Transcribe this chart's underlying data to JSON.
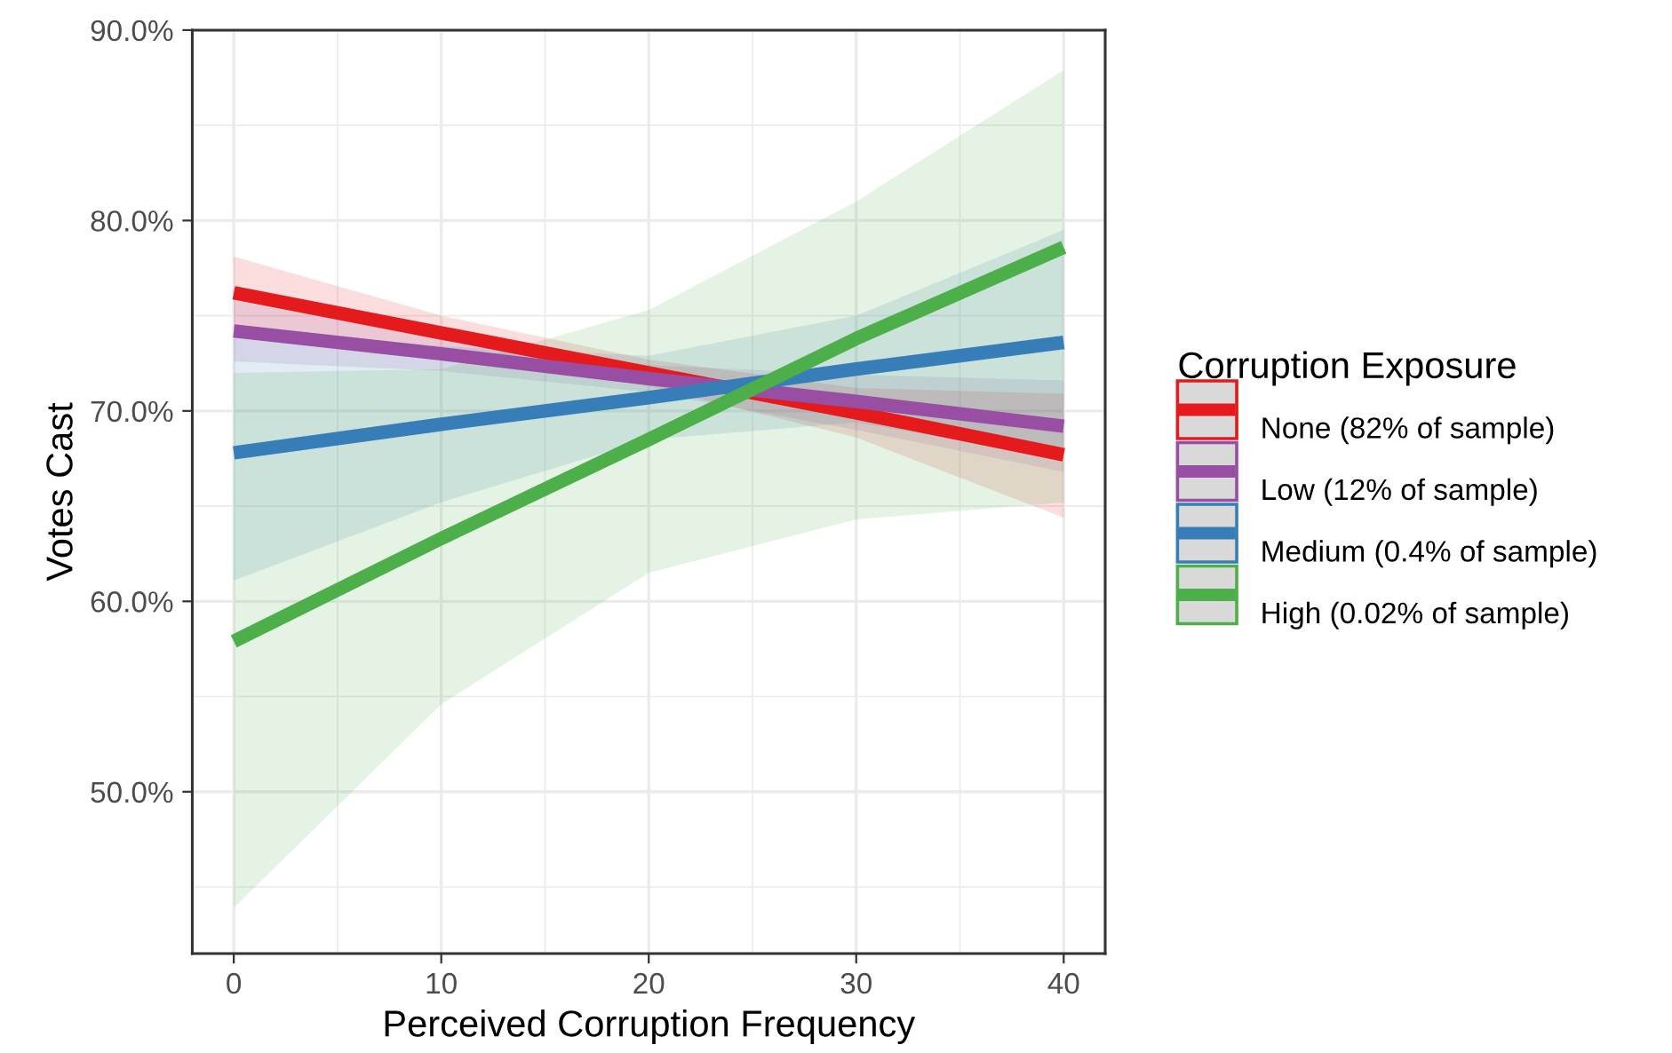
{
  "chart_data": {
    "type": "line",
    "xlabel": "Perceived Corruption Frequency",
    "ylabel": "Votes Cast",
    "legend_title": "Corruption Exposure",
    "x": [
      0,
      10,
      20,
      30,
      40
    ],
    "series": [
      {
        "name": "None (82% of sample)",
        "color": "#e41a1c",
        "values": [
          76.2,
          74.1,
          72.0,
          69.9,
          67.7
        ],
        "lower": [
          74.3,
          73.2,
          71.3,
          68.6,
          64.4
        ],
        "upper": [
          78.1,
          75.0,
          72.7,
          71.2,
          70.9
        ]
      },
      {
        "name": "Low (12% of sample)",
        "color": "#984ea3",
        "values": [
          74.2,
          73.0,
          71.7,
          70.5,
          69.2
        ],
        "lower": [
          72.6,
          72.1,
          71.0,
          69.0,
          66.8
        ],
        "upper": [
          75.8,
          73.9,
          72.4,
          71.9,
          71.6
        ]
      },
      {
        "name": "Medium (0.4% of sample)",
        "color": "#377eb8",
        "values": [
          67.8,
          69.3,
          70.7,
          72.2,
          73.6
        ],
        "lower": [
          61.1,
          65.2,
          68.5,
          69.4,
          67.5
        ],
        "upper": [
          74.4,
          73.4,
          72.9,
          75.0,
          79.5
        ]
      },
      {
        "name": "High (0.02% of sample)",
        "color": "#4daf4a",
        "values": [
          57.9,
          63.3,
          68.5,
          73.8,
          78.6
        ],
        "lower": [
          43.9,
          54.6,
          61.5,
          64.3,
          65.2
        ],
        "upper": [
          72.0,
          72.2,
          75.3,
          81.0,
          87.9
        ]
      }
    ],
    "xlim": [
      -2,
      42
    ],
    "xticks": [
      0,
      10,
      20,
      30,
      40
    ],
    "ylim": [
      41.5,
      90
    ],
    "yticks": [
      {
        "value": 50,
        "label": "50.0%"
      },
      {
        "value": 60,
        "label": "60.0%"
      },
      {
        "value": 70,
        "label": "70.0%"
      },
      {
        "value": 80,
        "label": "80.0%"
      },
      {
        "value": 90,
        "label": "90.0%"
      }
    ],
    "grid": true,
    "legend": "right",
    "line_style": "solid",
    "marker": "none"
  }
}
